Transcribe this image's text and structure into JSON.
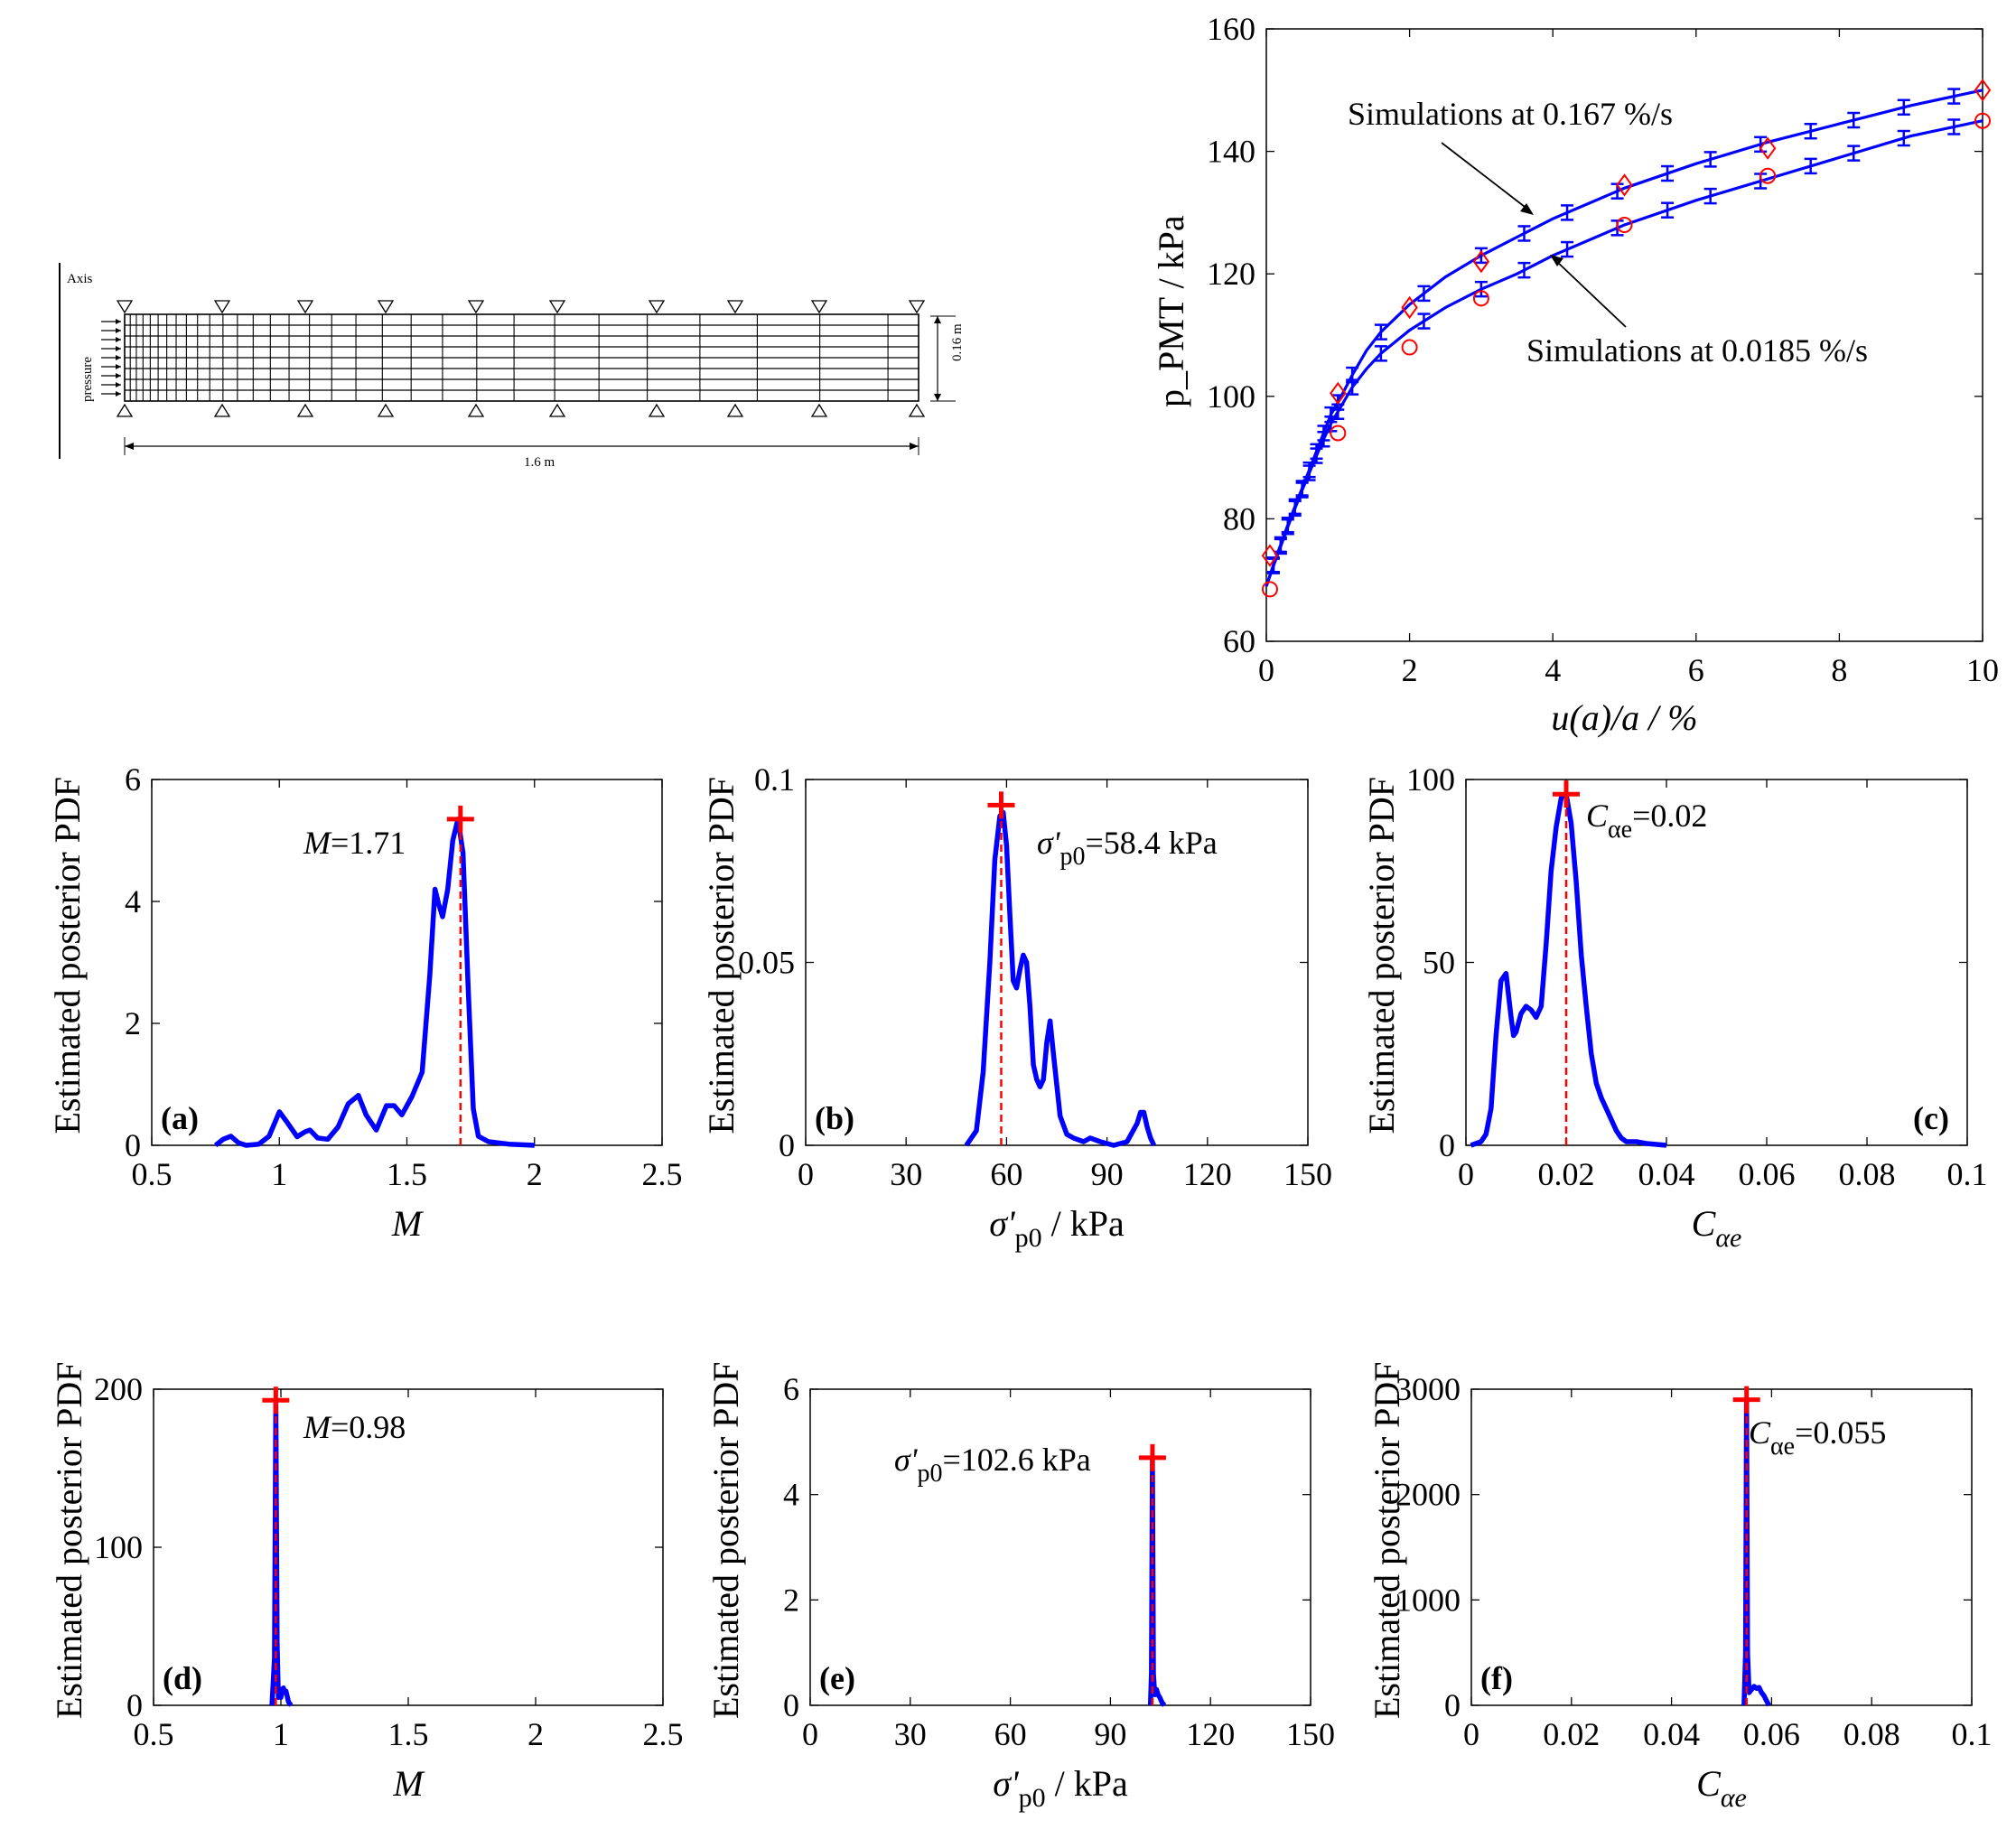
{
  "mesh": {
    "axis_label": "Axis",
    "pressure_label": "pressure",
    "height_label": "0.16 m",
    "length_label": "1.6 m"
  },
  "chart_data": [
    {
      "id": "pmt",
      "type": "line",
      "xlabel": "u(a)/a / %",
      "ylabel": "p_PMT / kPa",
      "xlim": [
        0,
        10
      ],
      "ylim": [
        60,
        160
      ],
      "xticks": [
        0,
        2,
        4,
        6,
        8,
        10
      ],
      "yticks": [
        60,
        80,
        100,
        120,
        140,
        160
      ],
      "series": [
        {
          "annotation": "Simulations at 0.167 %/s",
          "color": "#0000ff",
          "x": [
            0,
            0.1,
            0.2,
            0.3,
            0.4,
            0.5,
            0.6,
            0.7,
            0.8,
            0.9,
            1.0,
            1.2,
            1.4,
            1.6,
            2.0,
            2.5,
            3.0,
            3.5,
            4.0,
            5.0,
            6.0,
            7.0,
            8.0,
            9.0,
            10.0
          ],
          "y": [
            69,
            72.5,
            75.8,
            79,
            82,
            85,
            88,
            91,
            94,
            97,
            99,
            103.5,
            107.5,
            110.5,
            115,
            119.5,
            123,
            126,
            129,
            134,
            138,
            141.5,
            144.5,
            147.5,
            150
          ]
        },
        {
          "annotation": "Simulations at 0.0185 %/s",
          "color": "#0000ff",
          "x": [
            0,
            0.1,
            0.2,
            0.3,
            0.4,
            0.5,
            0.6,
            0.7,
            0.8,
            0.9,
            1.0,
            1.2,
            1.4,
            1.6,
            2.0,
            2.5,
            3.0,
            3.5,
            4.0,
            5.0,
            6.0,
            7.0,
            8.0,
            9.0,
            10.0
          ],
          "y": [
            69,
            72.3,
            75.5,
            78.7,
            81.7,
            84.7,
            87.5,
            90.3,
            93,
            95.5,
            97.5,
            101.5,
            104.5,
            107,
            110.8,
            114.5,
            117.5,
            120,
            123,
            128,
            132,
            135.5,
            139,
            142.5,
            145
          ]
        }
      ],
      "measured": [
        {
          "marker": "diamond",
          "color": "#ff0000",
          "x": [
            0.05,
            1.0,
            2.0,
            3.0,
            5.0,
            7.0,
            10.0
          ],
          "y": [
            74,
            100.5,
            114.5,
            122,
            134.5,
            140.5,
            150
          ]
        },
        {
          "marker": "circle",
          "color": "#ff0000",
          "x": [
            0.05,
            1.0,
            2.0,
            3.0,
            5.0,
            7.0,
            10.0
          ],
          "y": [
            68.5,
            94,
            108,
            116,
            128,
            136,
            145
          ]
        }
      ],
      "errorbars_x": [
        0.1,
        0.2,
        0.3,
        0.4,
        0.5,
        0.6,
        0.7,
        0.8,
        0.9,
        1.0,
        1.2,
        1.6,
        2.2,
        3.0,
        3.6,
        4.2,
        4.9,
        5.6,
        6.2,
        6.9,
        7.6,
        8.2,
        8.9,
        9.6
      ]
    },
    {
      "id": "a",
      "tag": "(a)",
      "type": "line",
      "xlabel": "M",
      "ylabel": "Estimated posterior PDF",
      "xlim": [
        0.5,
        2.5
      ],
      "ylim": [
        0,
        6
      ],
      "xticks": [
        "0.5",
        "1",
        "1.5",
        "2",
        "2.5"
      ],
      "xtick_values": [
        0.5,
        1,
        1.5,
        2,
        2.5
      ],
      "yticks": [
        "0",
        "2",
        "4",
        "6"
      ],
      "ytick_values": [
        0,
        2,
        4,
        6
      ],
      "tag_corner": "left",
      "map": {
        "x": 1.71,
        "y": 5.35,
        "label_var": "M",
        "label_value": "=1.71"
      },
      "x": [
        0.75,
        0.78,
        0.81,
        0.84,
        0.87,
        0.92,
        0.96,
        1.0,
        1.03,
        1.07,
        1.1,
        1.12,
        1.15,
        1.19,
        1.23,
        1.27,
        1.31,
        1.34,
        1.38,
        1.42,
        1.45,
        1.48,
        1.52,
        1.56,
        1.59,
        1.61,
        1.625,
        1.64,
        1.66,
        1.68,
        1.7,
        1.72,
        1.74,
        1.76,
        1.78,
        1.82,
        1.9,
        2.0
      ],
      "y": [
        0.0,
        0.1,
        0.15,
        0.04,
        0.0,
        0.02,
        0.15,
        0.55,
        0.38,
        0.14,
        0.22,
        0.25,
        0.12,
        0.1,
        0.3,
        0.68,
        0.82,
        0.5,
        0.25,
        0.65,
        0.65,
        0.5,
        0.8,
        1.2,
        2.8,
        4.2,
        3.95,
        3.75,
        4.2,
        5.0,
        5.35,
        4.8,
        2.6,
        0.6,
        0.15,
        0.06,
        0.02,
        0.0
      ]
    },
    {
      "id": "b",
      "tag": "(b)",
      "type": "line",
      "xlabel": "σ'p0 / kPa",
      "ylabel": "Estimated posterior PDF",
      "xlim": [
        0,
        150
      ],
      "ylim": [
        0,
        0.1
      ],
      "xticks": [
        "0",
        "30",
        "60",
        "90",
        "120",
        "150"
      ],
      "xtick_values": [
        0,
        30,
        60,
        90,
        120,
        150
      ],
      "yticks": [
        "0",
        "0.05",
        "0.1"
      ],
      "ytick_values": [
        0,
        0.05,
        0.1
      ],
      "tag_corner": "left",
      "map": {
        "x": 58.4,
        "y": 0.093,
        "label_var": "σ'",
        "label_sub": "p0",
        "label_value": "=58.4 kPa"
      },
      "x": [
        48,
        51,
        53,
        55,
        56.5,
        58,
        59,
        60,
        61,
        62,
        63,
        64,
        65,
        66,
        67,
        68,
        69,
        70,
        71,
        72,
        73,
        74,
        76,
        78,
        80,
        83,
        85,
        88,
        92,
        96,
        99,
        100,
        101,
        102,
        103,
        104
      ],
      "y": [
        0.0,
        0.004,
        0.02,
        0.05,
        0.078,
        0.09,
        0.091,
        0.082,
        0.063,
        0.045,
        0.043,
        0.048,
        0.052,
        0.05,
        0.038,
        0.022,
        0.018,
        0.016,
        0.018,
        0.028,
        0.034,
        0.025,
        0.008,
        0.003,
        0.002,
        0.001,
        0.002,
        0.001,
        0.0,
        0.001,
        0.006,
        0.009,
        0.009,
        0.005,
        0.002,
        0.0
      ]
    },
    {
      "id": "c",
      "tag": "(c)",
      "type": "line",
      "xlabel": "Cαe",
      "ylabel": "Estimated posterior PDF",
      "xlim": [
        0,
        0.1
      ],
      "ylim": [
        0,
        100
      ],
      "xticks": [
        "0",
        "0.02",
        "0.04",
        "0.06",
        "0.08",
        "0.1"
      ],
      "xtick_values": [
        0,
        0.02,
        0.04,
        0.06,
        0.08,
        0.1
      ],
      "yticks": [
        "0",
        "50",
        "100"
      ],
      "ytick_values": [
        0,
        50,
        100
      ],
      "tag_corner": "right",
      "map": {
        "x": 0.02,
        "y": 96,
        "label_var": "C",
        "label_sub": "αe",
        "label_value": "=0.02"
      },
      "x": [
        0.001,
        0.003,
        0.004,
        0.005,
        0.006,
        0.007,
        0.008,
        0.009,
        0.0095,
        0.01,
        0.011,
        0.012,
        0.013,
        0.014,
        0.015,
        0.016,
        0.017,
        0.018,
        0.019,
        0.02,
        0.021,
        0.022,
        0.023,
        0.024,
        0.025,
        0.026,
        0.027,
        0.028,
        0.029,
        0.03,
        0.031,
        0.032,
        0.034,
        0.036,
        0.04
      ],
      "y": [
        0,
        1,
        3,
        10,
        30,
        45,
        47,
        35,
        30,
        31,
        36,
        38,
        37,
        35,
        38,
        55,
        75,
        87,
        95,
        96,
        88,
        72,
        52,
        38,
        25,
        17,
        13,
        10,
        7,
        4,
        2,
        1,
        1,
        0.5,
        0
      ]
    },
    {
      "id": "d",
      "tag": "(d)",
      "type": "line",
      "xlabel": "M",
      "ylabel": "Estimated posterior PDF",
      "xlim": [
        0.5,
        2.5
      ],
      "ylim": [
        0,
        200
      ],
      "xticks": [
        "0.5",
        "1",
        "1.5",
        "2",
        "2.5"
      ],
      "xtick_values": [
        0.5,
        1,
        1.5,
        2,
        2.5
      ],
      "yticks": [
        "0",
        "100",
        "200"
      ],
      "ytick_values": [
        0,
        100,
        200
      ],
      "tag_corner": "left",
      "map": {
        "x": 0.98,
        "y": 193,
        "label_var": "M",
        "label_value": "=0.98"
      },
      "x": [
        0.965,
        0.975,
        0.98,
        0.985,
        0.99,
        0.995,
        1.0,
        1.005,
        1.01,
        1.015,
        1.02,
        1.03,
        1.04
      ],
      "y": [
        0,
        30,
        193,
        40,
        5,
        8,
        5,
        10,
        11,
        8,
        9,
        2,
        0
      ]
    },
    {
      "id": "e",
      "tag": "(e)",
      "type": "line",
      "xlabel": "σ'p0 / kPa",
      "ylabel": "Estimated posterior PDF",
      "xlim": [
        0,
        150
      ],
      "ylim": [
        0,
        6
      ],
      "xticks": [
        "0",
        "30",
        "60",
        "90",
        "120",
        "150"
      ],
      "xtick_values": [
        0,
        30,
        60,
        90,
        120,
        150
      ],
      "yticks": [
        "0",
        "2",
        "4",
        "6"
      ],
      "ytick_values": [
        0,
        2,
        4,
        6
      ],
      "tag_corner": "left",
      "map": {
        "x": 102.6,
        "y": 4.7,
        "label_var": "σ'",
        "label_sub": "p0",
        "label_value": "=102.6 kPa"
      },
      "x": [
        102.0,
        102.3,
        102.6,
        102.9,
        103.3,
        103.8,
        104.3,
        104.8,
        105.5,
        106.2
      ],
      "y": [
        0,
        0.6,
        4.7,
        0.6,
        0.2,
        0.3,
        0.2,
        0.15,
        0.05,
        0
      ]
    },
    {
      "id": "f",
      "tag": "(f)",
      "type": "line",
      "xlabel": "Cαe",
      "ylabel": "Estimated posterior PDF",
      "xlim": [
        0,
        0.1
      ],
      "ylim": [
        0,
        3000
      ],
      "xticks": [
        "0",
        "0.02",
        "0.04",
        "0.06",
        "0.08",
        "0.1"
      ],
      "xtick_values": [
        0,
        0.02,
        0.04,
        0.06,
        0.08,
        0.1
      ],
      "yticks": [
        "0",
        "1000",
        "2000",
        "3000"
      ],
      "ytick_values": [
        0,
        1000,
        2000,
        3000
      ],
      "tag_corner": "left",
      "map": {
        "x": 0.055,
        "y": 2900,
        "label_var": "C",
        "label_sub": "αe",
        "label_value": "=0.055"
      },
      "x": [
        0.0545,
        0.0548,
        0.055,
        0.0552,
        0.0555,
        0.056,
        0.0565,
        0.057,
        0.0575,
        0.058,
        0.0585,
        0.059,
        0.0595
      ],
      "y": [
        0,
        500,
        2900,
        500,
        120,
        150,
        180,
        160,
        170,
        120,
        90,
        40,
        0
      ]
    }
  ]
}
